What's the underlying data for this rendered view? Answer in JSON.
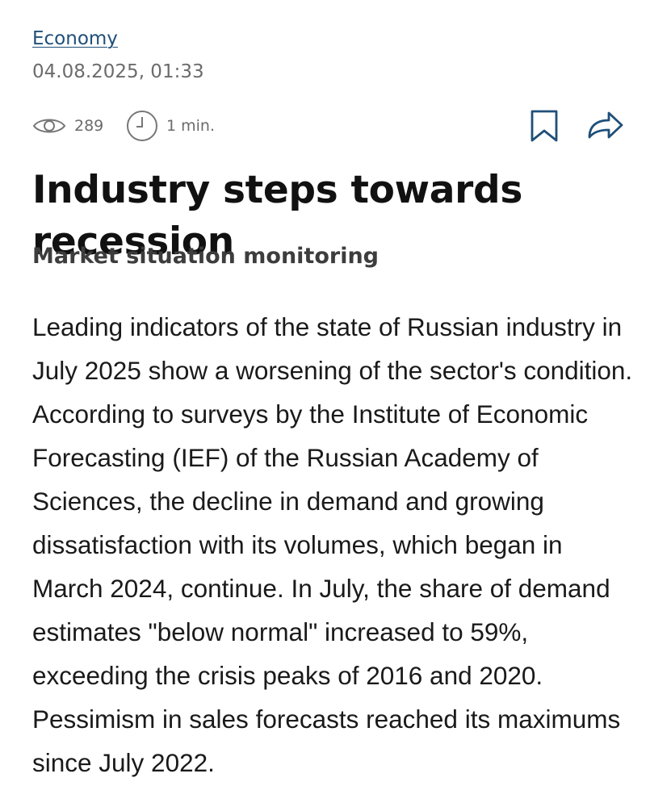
{
  "article": {
    "category": "Economy",
    "date": "04.08.2025, 01:33",
    "meta": {
      "views": "289",
      "views_icon": "eye-icon",
      "read_time": "1 min.",
      "read_time_icon": "clock-icon"
    },
    "actions": {
      "bookmark_icon": "bookmark-icon",
      "share_icon": "share-arrow-icon"
    },
    "title": "Industry steps towards recession",
    "subtitle": "Market situation monitoring",
    "body": "Leading indicators of the state of Russian industry in July 2025 show a worsening of the sector's condition. According to surveys by the Institute of Economic Forecasting (IEF) of the Russian Academy of Sciences, the decline in demand and growing dissatisfaction with its volumes, which began in March 2024, continue. In July, the share of demand estimates \"below normal\" increased to 59%, exceeding the crisis peaks of 2016 and 2020. Pessimism in sales forecasts reached its maximums since July 2022."
  },
  "colors": {
    "link": "#1f4f79",
    "muted_text": "#6b6b6b",
    "icon_accent": "#1f4f79",
    "text": "#1a1a1a"
  }
}
